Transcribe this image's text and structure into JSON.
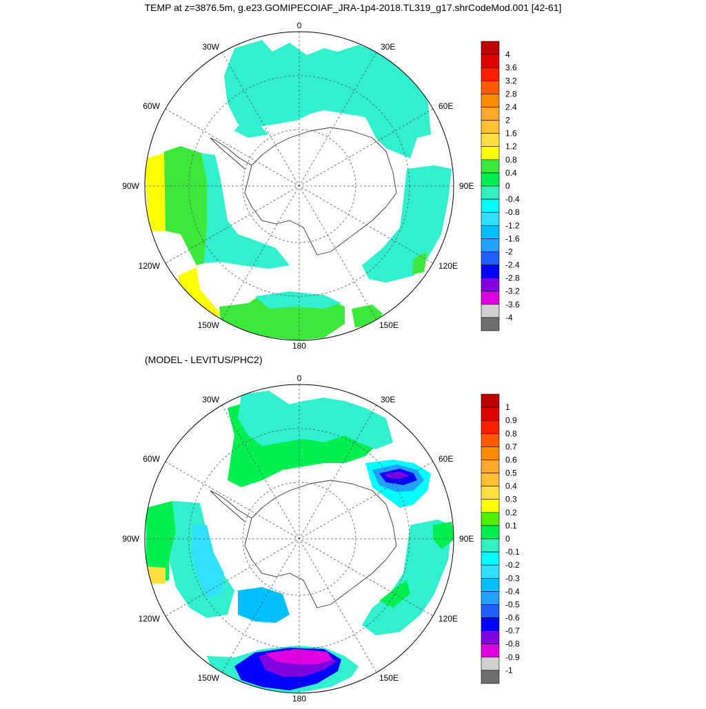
{
  "title": "TEMP at z=3876.5m, g.e23.GOMIPECOIAF_JRA-1p4-2018.TL319_g17.shrCodeMod.001 [42-61]",
  "subtitle": "(MODEL - LEVITUS/PHC2)",
  "longitude_labels": [
    "0",
    "30E",
    "60E",
    "90E",
    "120E",
    "150E",
    "180",
    "150W",
    "120W",
    "90W",
    "60W",
    "30W"
  ],
  "panel_top": {
    "colorbar_labels": [
      "4",
      "3.6",
      "3.2",
      "2.8",
      "2.4",
      "2",
      "1.6",
      "1.2",
      "0.8",
      "0.4",
      "0",
      "-0.4",
      "-0.8",
      "-1.2",
      "-1.6",
      "-2",
      "-2.4",
      "-2.8",
      "-3.2",
      "-3.6",
      "-4"
    ],
    "colorbar_colors": [
      "#c00000",
      "#e00000",
      "#ff2000",
      "#ff5a00",
      "#ff8c00",
      "#ffa830",
      "#ffc030",
      "#ffe040",
      "#ffff00",
      "#3ce83c",
      "#00f050",
      "#30f0c0",
      "#00ffff",
      "#30e0ff",
      "#00c0ff",
      "#20a0ff",
      "#2060ff",
      "#0000ff",
      "#8000e0",
      "#e000e0",
      "#d0d0d0",
      "#707070"
    ]
  },
  "panel_bottom": {
    "colorbar_labels": [
      "1",
      "0.9",
      "0.8",
      "0.7",
      "0.6",
      "0.5",
      "0.4",
      "0.3",
      "0.2",
      "0.1",
      "0",
      "-0.1",
      "-0.2",
      "-0.3",
      "-0.4",
      "-0.5",
      "-0.6",
      "-0.7",
      "-0.8",
      "-0.9",
      "-1"
    ],
    "colorbar_colors": [
      "#c00000",
      "#e00000",
      "#ff2000",
      "#ff5a00",
      "#ff8c00",
      "#ffa830",
      "#ffc030",
      "#ffe040",
      "#ffff00",
      "#50f000",
      "#00f050",
      "#30f0c0",
      "#00ffff",
      "#30e0ff",
      "#00c0ff",
      "#20a0ff",
      "#2060ff",
      "#0000ff",
      "#8000e0",
      "#e000e0",
      "#d0d0d0",
      "#707070"
    ]
  }
}
